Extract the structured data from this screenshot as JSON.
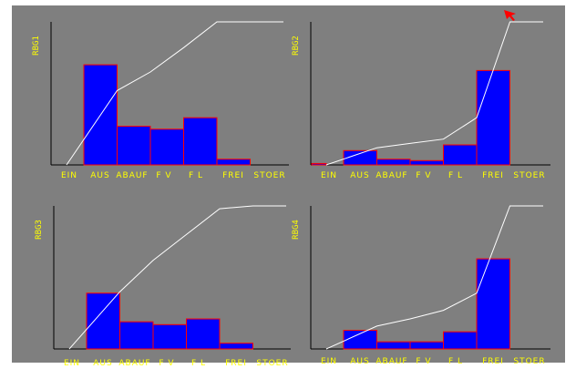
{
  "colors": {
    "background": "#7f7f7f",
    "bar_fill": "#0000ff",
    "bar_edge": "#ff0000",
    "line": "#ffffff",
    "axis": "#000000",
    "label": "#ffff00",
    "cursor": "#ff0000"
  },
  "icons": {
    "cursor": "red-arrow-cursor-icon"
  },
  "chart_data": [
    {
      "type": "bar",
      "title": "RBG1",
      "categories": [
        "EIN",
        "AUS",
        "ABAUF",
        "F V",
        "F L",
        "FREI",
        "STOER"
      ],
      "series": [
        {
          "values": [
            0,
            70,
            27,
            25,
            33,
            4,
            0
          ]
        },
        {
          "values": [
            0,
            52,
            65,
            82,
            100,
            100,
            100
          ]
        }
      ],
      "ylim": [
        0,
        100
      ]
    },
    {
      "type": "bar",
      "title": "RBG2",
      "categories": [
        "EIN",
        "AUS",
        "ABAUF",
        "F V",
        "F L",
        "FREI",
        "STOER"
      ],
      "series": [
        {
          "values": [
            1,
            10,
            4,
            3,
            14,
            66,
            0
          ]
        },
        {
          "values": [
            0,
            12,
            15,
            18,
            33,
            100,
            100
          ]
        }
      ],
      "ylim": [
        0,
        100
      ]
    },
    {
      "type": "bar",
      "title": "RBG3",
      "categories": [
        "EIN",
        "AUS",
        "ABAUF",
        "F V",
        "F L",
        "FREI",
        "STOER"
      ],
      "series": [
        {
          "values": [
            0,
            39,
            19,
            17,
            21,
            4,
            0
          ]
        },
        {
          "values": [
            0,
            40,
            62,
            80,
            98,
            100,
            100
          ]
        }
      ],
      "ylim": [
        0,
        100
      ]
    },
    {
      "type": "bar",
      "title": "RBG4",
      "categories": [
        "EIN",
        "AUS",
        "ABAUF",
        "F V",
        "F L",
        "FREI",
        "STOER"
      ],
      "series": [
        {
          "values": [
            0,
            13,
            5,
            5,
            12,
            63,
            0
          ]
        },
        {
          "values": [
            0,
            16,
            21,
            27,
            39,
            100,
            100
          ]
        }
      ],
      "ylim": [
        0,
        100
      ]
    }
  ]
}
